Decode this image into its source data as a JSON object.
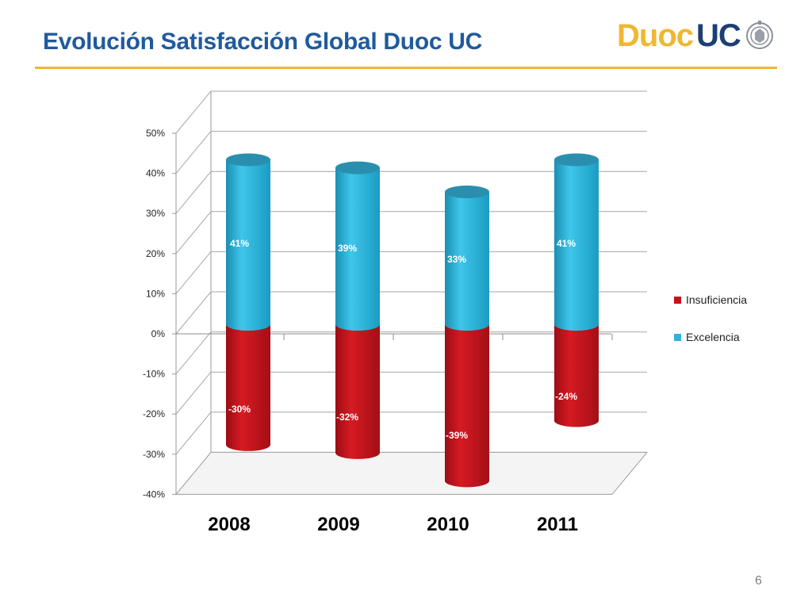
{
  "slide": {
    "title": "Evolución Satisfacción Global Duoc UC",
    "page_number": "6"
  },
  "logo": {
    "part1": "Duoc",
    "part2": "UC"
  },
  "colors": {
    "title": "#1f5a9e",
    "accent_rule": "#f0b731",
    "excelencia": "#2fb3d6",
    "insuficiencia": "#c1121c"
  },
  "chart_data": {
    "type": "bar",
    "stacked": true,
    "style": "3d-cylinder",
    "categories": [
      "2008",
      "2009",
      "2010",
      "2011"
    ],
    "series": [
      {
        "name": "Insuficiencia",
        "values": [
          -30,
          -32,
          -39,
          -24
        ],
        "labels": [
          "-30%",
          "-32%",
          "-39%",
          "-24%"
        ]
      },
      {
        "name": "Excelencia",
        "values": [
          41,
          39,
          33,
          41
        ],
        "labels": [
          "41%",
          "39%",
          "33%",
          "41%"
        ]
      }
    ],
    "ylim": [
      -40,
      50
    ],
    "yticks": [
      "50%",
      "40%",
      "30%",
      "20%",
      "10%",
      "0%",
      "-10%",
      "-20%",
      "-30%",
      "-40%"
    ],
    "grid": true,
    "legend": "right"
  }
}
